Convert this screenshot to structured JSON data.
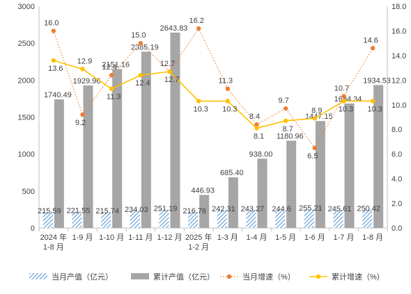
{
  "chart_data": {
    "type": "bar",
    "categories": [
      [
        "2024 年",
        "1-8 月"
      ],
      [
        "1-9 月"
      ],
      [
        "1-10 月"
      ],
      [
        "1-11 月"
      ],
      [
        "1-12 月"
      ],
      [
        "2025 年",
        "1-2 月"
      ],
      [
        "1-3 月"
      ],
      [
        "1-4 月"
      ],
      [
        "1-5 月"
      ],
      [
        "1-6 月"
      ],
      [
        "1-7 月"
      ],
      [
        "1-8 月"
      ]
    ],
    "left_axis": {
      "min": 0,
      "max": 3000,
      "ticks": [
        "0",
        "500",
        "1000",
        "1500",
        "2000",
        "2500",
        "3000"
      ]
    },
    "right_axis": {
      "min": 0,
      "max": 18,
      "ticks": [
        "0.0",
        "2.0",
        "4.0",
        "6.0",
        "8.0",
        "10.0",
        "12.0",
        "14.0",
        "16.0",
        "18.0"
      ]
    },
    "series": [
      {
        "name": "当月产值（亿元）",
        "kind": "bar-hatched",
        "axis": "left",
        "color": "#5b9bd5",
        "values": [
          215.59,
          221.55,
          215.74,
          234.03,
          251.19,
          216.76,
          242.31,
          243.27,
          244.6,
          255.21,
          245.61,
          250.42
        ],
        "labels": [
          "215.59",
          "221.55",
          "215.74",
          "234.03",
          "251.19",
          "216.76",
          "242.31",
          "243.27",
          "244.6",
          "255.21",
          "245.61",
          "250.42"
        ]
      },
      {
        "name": "累计产值（亿元）",
        "kind": "bar",
        "axis": "left",
        "color": "#a6a6a6",
        "values": [
          1740.49,
          1929.96,
          2151.16,
          2385.19,
          2643.83,
          446.93,
          685.4,
          938.0,
          1180.96,
          1447.15,
          1684.34,
          1934.53
        ],
        "labels": [
          "1740.49",
          "1929.96",
          "2151.16",
          "2385.19",
          "2643.83",
          "446.93",
          "685.40",
          "938.00",
          "1180.96",
          "1447.15",
          "1684.34",
          "1934.53"
        ]
      },
      {
        "name": "当月增速（%）",
        "kind": "line-dotted",
        "axis": "right",
        "color": "#ed7d31",
        "values": [
          16.0,
          9.2,
          12.4,
          15.0,
          12.7,
          16.2,
          11.3,
          8.4,
          9.7,
          6.5,
          10.7,
          14.6
        ],
        "labels": [
          "16.0",
          "9.2",
          "12.4",
          "15.0",
          "12.7",
          "16.2",
          "11.3",
          "8.4",
          "9.7",
          "6.5",
          "10.7",
          "14.6"
        ]
      },
      {
        "name": "累计增速（%）",
        "kind": "line",
        "axis": "right",
        "color": "#ffc000",
        "values": [
          13.6,
          12.9,
          11.3,
          12.4,
          12.7,
          10.3,
          10.3,
          8.1,
          8.7,
          8.9,
          10.3,
          10.3
        ],
        "labels": [
          "13.6",
          "12.9",
          "11.3",
          "12.4",
          "12.7",
          "10.3",
          "10.3",
          "8.1",
          "8.7",
          "8.9",
          "10.3",
          "10.3"
        ]
      }
    ],
    "legend_position": "bottom",
    "grid": false
  }
}
